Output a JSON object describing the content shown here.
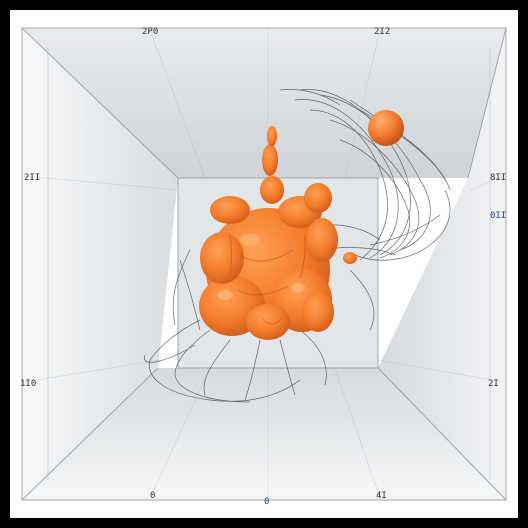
{
  "image": {
    "subject": "orange blob sculpture in a white box corridor",
    "colors": {
      "frame": "#000000",
      "wall_light": "#f4f5f6",
      "wall_shade": "#d9dcdf",
      "blob": "#f07a2a",
      "blob_shadow": "#c85418",
      "blob_highlight": "#ffb070",
      "wire": "#3a3a3a"
    }
  },
  "labels": {
    "top_left": "",
    "top_1": "2P0",
    "top_2": "",
    "top_3": "2I2",
    "top_right": "",
    "left_mid": "2II",
    "right_mid": "8II",
    "right_mid2": "0II",
    "left_low": "1I0",
    "right_low": "2I",
    "bottom_left": "",
    "bottom_1": "0",
    "bottom_2": "0",
    "bottom_3": "4I",
    "bottom_right": ""
  }
}
